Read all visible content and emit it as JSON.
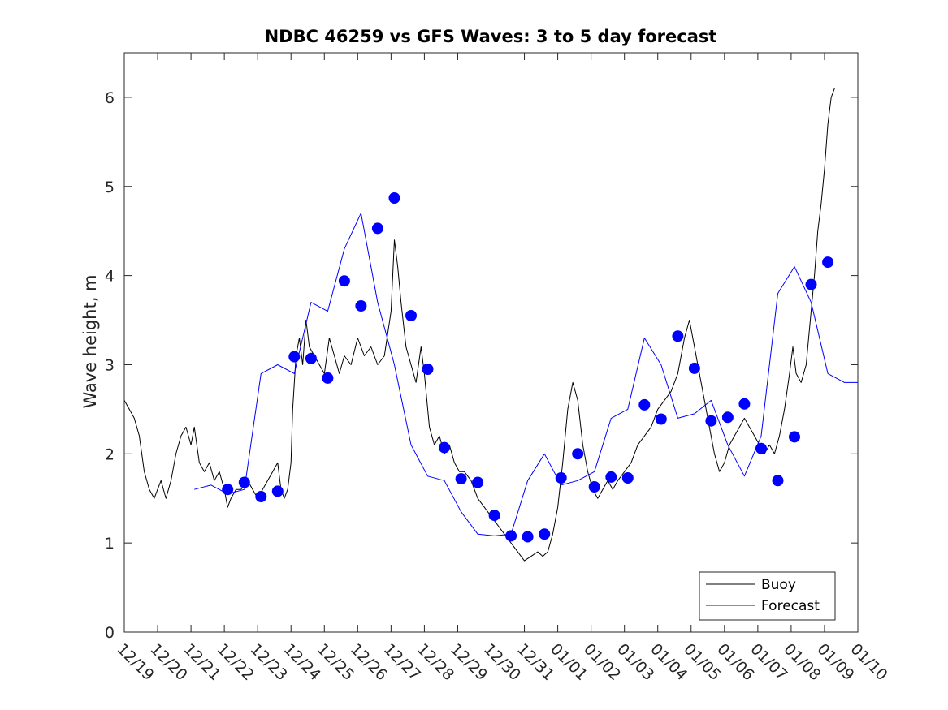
{
  "chart_data": {
    "type": "line",
    "title": "NDBC 46259 vs GFS Waves: 3 to 5 day forecast",
    "xlabel": "",
    "ylabel": "Wave height, m",
    "xlim": [
      0,
      22
    ],
    "ylim": [
      0,
      6.5
    ],
    "x_ticks": [
      0,
      1,
      2,
      3,
      4,
      5,
      6,
      7,
      8,
      9,
      10,
      11,
      12,
      13,
      14,
      15,
      16,
      17,
      18,
      19,
      20,
      21,
      22
    ],
    "x_tick_labels": [
      "12/19",
      "12/20",
      "12/21",
      "12/22",
      "12/23",
      "12/24",
      "12/25",
      "12/26",
      "12/27",
      "12/28",
      "12/29",
      "12/30",
      "12/31",
      "01/01",
      "01/02",
      "01/03",
      "01/04",
      "01/05",
      "01/06",
      "01/07",
      "01/08",
      "01/09",
      "01/10"
    ],
    "y_ticks": [
      0,
      1,
      2,
      3,
      4,
      5,
      6
    ],
    "y_tick_labels": [
      "0",
      "1",
      "2",
      "3",
      "4",
      "5",
      "6"
    ],
    "grid": false,
    "legend": {
      "position": "bottom-right",
      "entries": [
        "Buoy",
        "Forecast"
      ]
    },
    "colors": {
      "buoy": "#000000",
      "forecast": "#0000ff"
    },
    "series": [
      {
        "name": "Buoy",
        "x": [
          0.0,
          0.15,
          0.3,
          0.45,
          0.6,
          0.75,
          0.9,
          1.0,
          1.1,
          1.25,
          1.4,
          1.55,
          1.7,
          1.85,
          2.0,
          2.1,
          2.25,
          2.4,
          2.55,
          2.7,
          2.85,
          3.0,
          3.1,
          3.2,
          3.35,
          3.5,
          3.7,
          3.85,
          4.0,
          4.15,
          4.3,
          4.45,
          4.6,
          4.7,
          4.8,
          4.9,
          5.0,
          5.05,
          5.15,
          5.25,
          5.35,
          5.45,
          5.55,
          5.7,
          5.85,
          6.0,
          6.15,
          6.3,
          6.45,
          6.6,
          6.8,
          7.0,
          7.2,
          7.4,
          7.6,
          7.8,
          8.0,
          8.1,
          8.2,
          8.3,
          8.45,
          8.6,
          8.75,
          8.9,
          9.0,
          9.15,
          9.3,
          9.45,
          9.6,
          9.75,
          9.9,
          10.05,
          10.2,
          10.4,
          10.6,
          10.8,
          11.0,
          11.2,
          11.4,
          11.6,
          11.8,
          12.0,
          12.2,
          12.4,
          12.55,
          12.7,
          12.85,
          13.0,
          13.15,
          13.3,
          13.45,
          13.6,
          13.75,
          13.9,
          14.05,
          14.2,
          14.35,
          14.5,
          14.65,
          14.8,
          15.0,
          15.2,
          15.4,
          15.6,
          15.8,
          16.0,
          16.2,
          16.4,
          16.6,
          16.8,
          16.95,
          17.1,
          17.25,
          17.4,
          17.55,
          17.7,
          17.85,
          18.0,
          18.15,
          18.3,
          18.45,
          18.6,
          18.75,
          18.9,
          19.05,
          19.2,
          19.35,
          19.5,
          19.65,
          19.8,
          19.95,
          20.05,
          20.15,
          20.3,
          20.45,
          20.6,
          20.7,
          20.8,
          20.9,
          21.0,
          21.1,
          21.2,
          21.3
        ],
        "values": [
          2.6,
          2.5,
          2.4,
          2.2,
          1.8,
          1.6,
          1.5,
          1.6,
          1.7,
          1.5,
          1.7,
          2.0,
          2.2,
          2.3,
          2.1,
          2.3,
          1.9,
          1.8,
          1.9,
          1.7,
          1.8,
          1.6,
          1.4,
          1.5,
          1.6,
          1.6,
          1.7,
          1.6,
          1.5,
          1.6,
          1.7,
          1.8,
          1.9,
          1.6,
          1.5,
          1.6,
          1.9,
          2.5,
          3.1,
          3.3,
          3.0,
          3.5,
          3.2,
          3.1,
          3.0,
          2.9,
          3.3,
          3.1,
          2.9,
          3.1,
          3.0,
          3.3,
          3.1,
          3.2,
          3.0,
          3.1,
          3.6,
          4.4,
          4.1,
          3.7,
          3.2,
          3.0,
          2.8,
          3.2,
          2.9,
          2.3,
          2.1,
          2.2,
          2.0,
          2.1,
          1.9,
          1.8,
          1.8,
          1.7,
          1.5,
          1.4,
          1.3,
          1.2,
          1.1,
          1.0,
          0.9,
          0.8,
          0.85,
          0.9,
          0.85,
          0.9,
          1.1,
          1.4,
          1.9,
          2.5,
          2.8,
          2.6,
          2.1,
          1.8,
          1.6,
          1.5,
          1.6,
          1.7,
          1.6,
          1.7,
          1.8,
          1.9,
          2.1,
          2.2,
          2.3,
          2.5,
          2.6,
          2.7,
          2.9,
          3.3,
          3.5,
          3.2,
          2.9,
          2.6,
          2.3,
          2.0,
          1.8,
          1.9,
          2.1,
          2.2,
          2.3,
          2.4,
          2.3,
          2.2,
          2.1,
          2.0,
          2.1,
          2.0,
          2.2,
          2.5,
          2.9,
          3.2,
          2.9,
          2.8,
          3.0,
          3.6,
          4.0,
          4.5,
          4.8,
          5.2,
          5.7,
          6.0,
          6.1
        ]
      },
      {
        "name": "Forecast",
        "x": [
          2.1,
          2.6,
          3.1,
          3.6,
          4.1,
          4.6,
          5.1,
          5.6,
          6.1,
          6.6,
          7.1,
          7.6,
          8.1,
          8.6,
          9.1,
          9.6,
          10.1,
          10.6,
          11.1,
          11.6,
          12.1,
          12.6,
          13.1,
          13.6,
          14.1,
          14.6,
          15.1,
          15.6,
          16.1,
          16.6,
          17.1,
          17.6,
          18.1,
          18.6,
          19.1,
          19.6,
          20.1,
          20.6,
          21.1,
          21.6,
          22.0
        ],
        "values": [
          1.6,
          1.65,
          1.55,
          1.6,
          2.9,
          3.0,
          2.9,
          3.7,
          3.6,
          4.3,
          4.7,
          3.7,
          3.0,
          2.1,
          1.75,
          1.7,
          1.35,
          1.1,
          1.08,
          1.1,
          1.7,
          2.0,
          1.65,
          1.7,
          1.8,
          2.4,
          2.5,
          3.3,
          3.0,
          2.4,
          2.45,
          2.6,
          2.1,
          1.75,
          2.2,
          3.8,
          4.1,
          3.7,
          2.9,
          2.8,
          2.8
        ],
        "markers": {
          "x": [
            3.1,
            3.6,
            4.1,
            4.6,
            5.1,
            5.6,
            6.1,
            6.6,
            7.1,
            7.6,
            8.1,
            8.6,
            9.1,
            9.6,
            10.1,
            10.6,
            11.1,
            11.6,
            12.1,
            12.6,
            13.1,
            13.6,
            14.1,
            14.6,
            15.1,
            15.6,
            16.1,
            16.6,
            17.1,
            17.6,
            18.1,
            18.6,
            19.1,
            19.6,
            20.1,
            20.6,
            21.1
          ],
          "values": [
            1.6,
            1.68,
            1.52,
            1.58,
            3.09,
            3.07,
            2.85,
            3.94,
            3.66,
            4.53,
            4.87,
            3.55,
            2.95,
            2.07,
            1.72,
            1.68,
            1.31,
            1.08,
            1.07,
            1.1,
            1.73,
            2.0,
            1.63,
            1.74,
            1.73,
            2.55,
            2.39,
            3.32,
            2.96,
            2.37,
            2.41,
            2.56,
            2.06,
            1.7,
            2.19,
            3.9,
            4.15
          ]
        }
      }
    ]
  }
}
